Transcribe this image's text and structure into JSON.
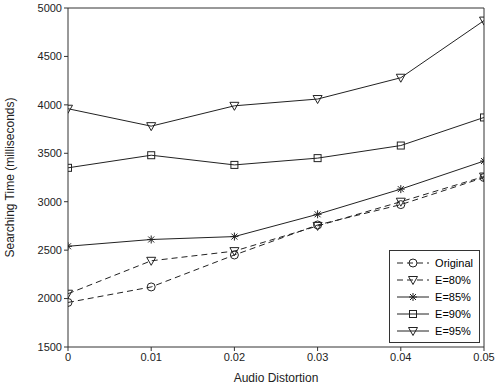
{
  "chart_data": {
    "type": "line",
    "x_label": "Audio Distortion",
    "y_label": "Searching Time (milliseconds)",
    "x": [
      0,
      0.01,
      0.02,
      0.03,
      0.04,
      0.05
    ],
    "series": [
      {
        "name": "Original",
        "color": "#222222",
        "marker": "circle",
        "line_style": "dashed",
        "values": [
          1960,
          2120,
          2450,
          2760,
          2970,
          3250
        ]
      },
      {
        "name": "E=80%",
        "color": "#222222",
        "marker": "triangle_down",
        "line_style": "dashed",
        "values": [
          2050,
          2390,
          2490,
          2750,
          3000,
          3260
        ]
      },
      {
        "name": "E=85%",
        "color": "#222222",
        "marker": "star",
        "line_style": "solid",
        "values": [
          2540,
          2610,
          2640,
          2870,
          3130,
          3420
        ]
      },
      {
        "name": "E=90%",
        "color": "#222222",
        "marker": "square",
        "line_style": "solid",
        "values": [
          3350,
          3480,
          3380,
          3450,
          3580,
          3870
        ]
      },
      {
        "name": "E=95%",
        "color": "#222222",
        "marker": "triangle_down",
        "line_style": "solid",
        "values": [
          3960,
          3780,
          3990,
          4060,
          4280,
          4870
        ]
      }
    ],
    "xlim": [
      0,
      0.05
    ],
    "xticks": [
      0,
      0.01,
      0.02,
      0.03,
      0.04,
      0.05
    ],
    "ylim": [
      1500,
      5000
    ],
    "yticks": [
      1500,
      2000,
      2500,
      3000,
      3500,
      4000,
      4500,
      5000
    ],
    "grid": false,
    "legend": "lower right"
  }
}
